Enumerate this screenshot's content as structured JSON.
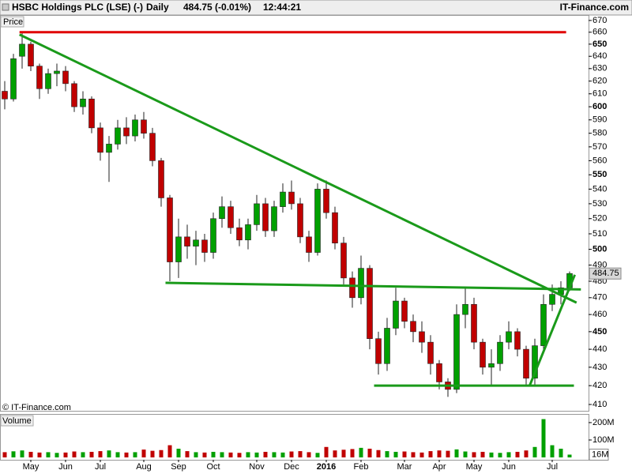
{
  "chart_data": {
    "type": "candlestick",
    "title": "HSBC Holdings PLC (LSE) (-)",
    "period": "Daily",
    "header_price": "484.75 (-0.01%)",
    "time": "12:44:21",
    "brand": "IT-Finance.com",
    "copyright": "© IT-Finance.com",
    "price_label": "Price",
    "volume_label": "Volume",
    "log_scale": true,
    "up_color": "#00a000",
    "down_color": "#c00000",
    "bold_every": 50,
    "categories": [
      null,
      null,
      null,
      "May",
      null,
      null,
      null,
      "Jun",
      null,
      null,
      null,
      "Jul",
      null,
      null,
      null,
      null,
      "Aug",
      null,
      null,
      null,
      "Sep",
      null,
      null,
      null,
      "Oct",
      null,
      null,
      null,
      null,
      "Nov",
      null,
      null,
      null,
      "Dec",
      null,
      null,
      null,
      "2016",
      null,
      null,
      null,
      "Feb",
      null,
      null,
      null,
      null,
      "Mar",
      null,
      null,
      null,
      "Apr",
      null,
      null,
      null,
      "May",
      null,
      null,
      null,
      "Jun",
      null,
      null,
      null,
      null,
      "Jul",
      null,
      null
    ],
    "open": [
      612,
      606,
      640,
      650,
      632,
      614,
      626,
      628,
      618,
      600,
      606,
      584,
      566,
      572,
      584,
      578,
      590,
      580,
      560,
      534,
      492,
      508,
      502,
      506,
      498,
      520,
      528,
      514,
      506,
      516,
      530,
      512,
      528,
      538,
      530,
      508,
      498,
      540,
      524,
      504,
      482,
      470,
      488,
      446,
      432,
      452,
      468,
      456,
      450,
      444,
      432,
      422,
      418,
      460,
      466,
      444,
      430,
      432,
      444,
      450,
      440,
      424,
      442,
      466,
      472,
      476
    ],
    "high": [
      620,
      642,
      660,
      652,
      634,
      630,
      634,
      632,
      620,
      612,
      608,
      588,
      578,
      590,
      592,
      594,
      596,
      584,
      562,
      536,
      520,
      516,
      512,
      510,
      524,
      535,
      532,
      520,
      520,
      536,
      534,
      532,
      544,
      546,
      534,
      512,
      544,
      546,
      528,
      508,
      486,
      496,
      490,
      450,
      458,
      476,
      470,
      460,
      456,
      448,
      434,
      424,
      466,
      476,
      470,
      446,
      440,
      448,
      456,
      452,
      442,
      446,
      472,
      478,
      480,
      486
    ],
    "low": [
      598,
      604,
      630,
      628,
      606,
      610,
      616,
      612,
      596,
      594,
      580,
      560,
      545,
      568,
      572,
      574,
      576,
      556,
      528,
      480,
      482,
      494,
      490,
      492,
      494,
      514,
      510,
      502,
      500,
      512,
      508,
      508,
      524,
      526,
      504,
      492,
      496,
      520,
      500,
      478,
      464,
      466,
      440,
      426,
      428,
      448,
      452,
      444,
      438,
      426,
      418,
      414,
      416,
      452,
      440,
      426,
      420,
      428,
      440,
      436,
      420,
      420,
      438,
      462,
      466,
      474
    ],
    "close": [
      606,
      638,
      650,
      632,
      614,
      626,
      628,
      618,
      600,
      606,
      584,
      566,
      572,
      584,
      578,
      590,
      580,
      560,
      534,
      492,
      508,
      502,
      506,
      498,
      520,
      528,
      514,
      506,
      516,
      530,
      512,
      528,
      538,
      530,
      508,
      498,
      540,
      524,
      504,
      482,
      470,
      488,
      446,
      432,
      452,
      468,
      456,
      450,
      444,
      432,
      422,
      418,
      460,
      466,
      444,
      430,
      432,
      444,
      450,
      440,
      424,
      442,
      466,
      472,
      476,
      484.75
    ],
    "ylim": [
      406.7,
      674
    ],
    "yticks": [
      410,
      420,
      430,
      440,
      450,
      460,
      470,
      480,
      490,
      500,
      510,
      520,
      530,
      540,
      550,
      560,
      570,
      580,
      590,
      600,
      610,
      620,
      630,
      640,
      650,
      660,
      670
    ],
    "volume": {
      "values": [
        30,
        35,
        40,
        32,
        28,
        30,
        26,
        28,
        34,
        30,
        32,
        36,
        40,
        30,
        28,
        30,
        45,
        38,
        42,
        70,
        50,
        36,
        30,
        28,
        32,
        30,
        28,
        26,
        30,
        28,
        32,
        30,
        28,
        34,
        36,
        30,
        26,
        60,
        40,
        44,
        48,
        55,
        50,
        42,
        36,
        32,
        34,
        30,
        28,
        36,
        40,
        38,
        46,
        34,
        30,
        32,
        28,
        26,
        30,
        32,
        40,
        60,
        220,
        70,
        50,
        16
      ],
      "last_label": "16M",
      "ylim": [
        0,
        236
      ],
      "yticks": [
        {
          "value": 100,
          "label": "100M"
        },
        {
          "value": 200,
          "label": "200M"
        }
      ]
    },
    "trendlines": [
      {
        "color": "#e00000",
        "points": [
          [
            1.7,
            660
          ],
          [
            64.6,
            660
          ]
        ]
      },
      {
        "color": "#1a9a1a",
        "points": [
          [
            1.7,
            658
          ],
          [
            65.8,
            467
          ]
        ]
      },
      {
        "color": "#1a9a1a",
        "points": [
          [
            18.5,
            479
          ],
          [
            66.3,
            475
          ]
        ]
      },
      {
        "color": "#1a9a1a",
        "points": [
          [
            42.5,
            420
          ],
          [
            65.5,
            420
          ]
        ]
      },
      {
        "color": "#1a9a1a",
        "points": [
          [
            60.4,
            420
          ],
          [
            65.6,
            484
          ]
        ]
      }
    ]
  }
}
